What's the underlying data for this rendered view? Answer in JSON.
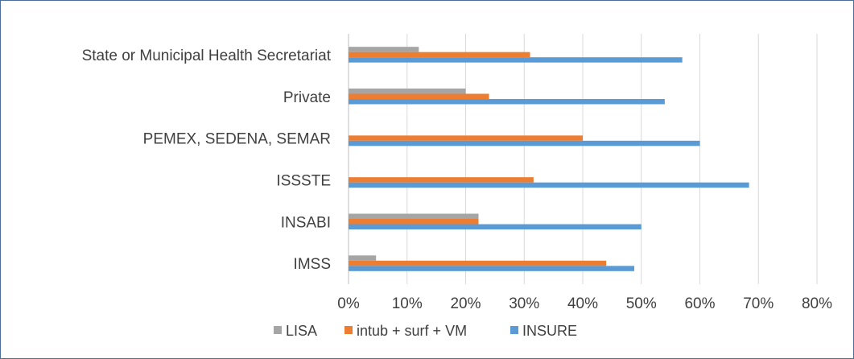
{
  "chart_data": {
    "type": "bar",
    "orientation": "horizontal",
    "title": "",
    "xlabel": "",
    "ylabel": "",
    "xlim": [
      0,
      0.8
    ],
    "x_ticks": [
      0,
      0.1,
      0.2,
      0.3,
      0.4,
      0.5,
      0.6,
      0.7,
      0.8
    ],
    "x_tick_labels": [
      "0%",
      "10%",
      "20%",
      "30%",
      "40%",
      "50%",
      "60%",
      "70%",
      "80%"
    ],
    "grid": "vertical",
    "legend_position": "bottom",
    "categories": [
      "State or Municipal Health Secretariat",
      "Private",
      "PEMEX, SEDENA, SEMAR",
      "ISSSTE",
      "INSABI",
      "IMSS"
    ],
    "series": [
      {
        "name": "LISA",
        "color": "#a5a5a5",
        "values": [
          0.12,
          0.2,
          0.0,
          0.0,
          0.222,
          0.047
        ]
      },
      {
        "name": "intub + surf + VM",
        "color": "#ed7d31",
        "values": [
          0.31,
          0.24,
          0.4,
          0.316,
          0.222,
          0.44
        ]
      },
      {
        "name": "INSURE",
        "color": "#5b9bd5",
        "values": [
          0.57,
          0.54,
          0.6,
          0.684,
          0.5,
          0.488
        ]
      }
    ]
  }
}
